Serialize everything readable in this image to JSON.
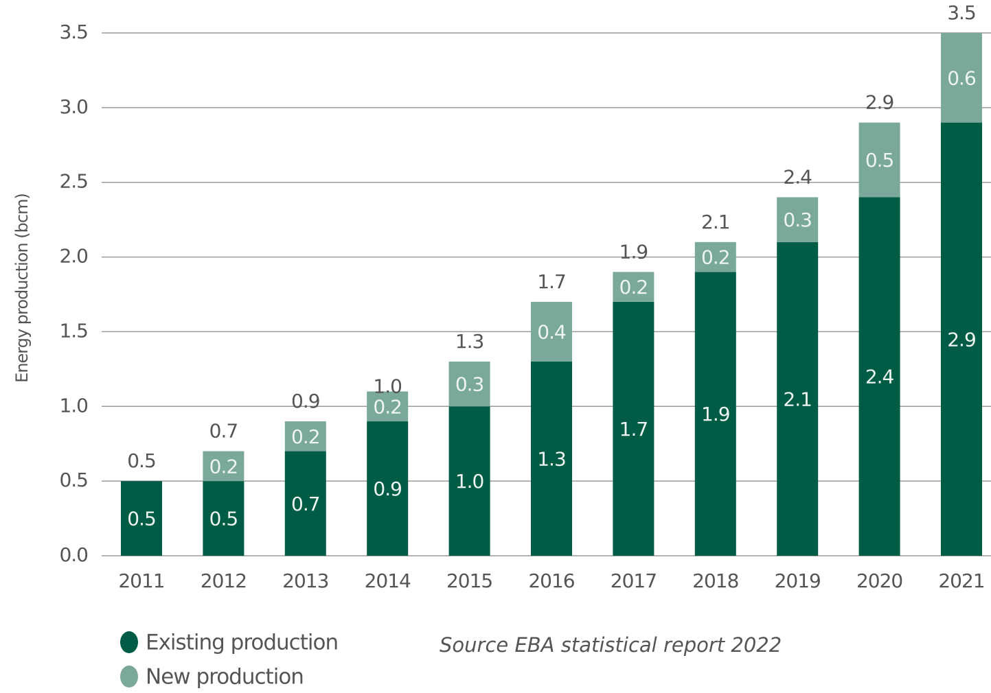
{
  "chart_data": {
    "type": "stacked-bar",
    "y_label": "Energy production (bcm)",
    "source": "Source EBA statistical report 2022",
    "categories": [
      "2011",
      "2012",
      "2013",
      "2014",
      "2015",
      "2016",
      "2017",
      "2018",
      "2019",
      "2020",
      "2021"
    ],
    "series": [
      {
        "name": "Existing production",
        "color": "#005c44",
        "values": [
          0.5,
          0.5,
          0.7,
          0.9,
          1.0,
          1.3,
          1.7,
          1.9,
          2.1,
          2.4,
          2.9
        ],
        "value_labels": [
          "0.5",
          "0.5",
          "0.7",
          "0.9",
          "1.0",
          "1.3",
          "1.7",
          "1.9",
          "2.1",
          "2.4",
          "2.9"
        ]
      },
      {
        "name": "New production",
        "color": "#7aa89a",
        "values": [
          null,
          0.2,
          0.2,
          0.2,
          0.3,
          0.4,
          0.2,
          0.2,
          0.3,
          0.5,
          0.6
        ],
        "value_labels": [
          null,
          "0.2",
          "0.2",
          "0.2",
          "0.3",
          "0.4",
          "0.2",
          "0.2",
          "0.3",
          "0.5",
          "0.6"
        ]
      }
    ],
    "totals": [
      0.5,
      0.7,
      0.9,
      1.0,
      1.3,
      1.7,
      1.9,
      2.1,
      2.4,
      2.9,
      3.5
    ],
    "total_labels": [
      "0.5",
      "0.7",
      "0.9",
      "1.0",
      "1.3",
      "1.7",
      "1.9",
      "2.1",
      "2.4",
      "2.9",
      "3.5"
    ],
    "ylim": [
      0,
      3.5
    ],
    "yticks": [
      {
        "value": 0,
        "label": "0.0"
      },
      0.5,
      {
        "value": 1,
        "label": "1.0"
      },
      1.5,
      {
        "value": 2,
        "label": "2.0"
      },
      2.5,
      {
        "value": 3,
        "label": "3.0"
      },
      3.5
    ],
    "grid": true
  }
}
